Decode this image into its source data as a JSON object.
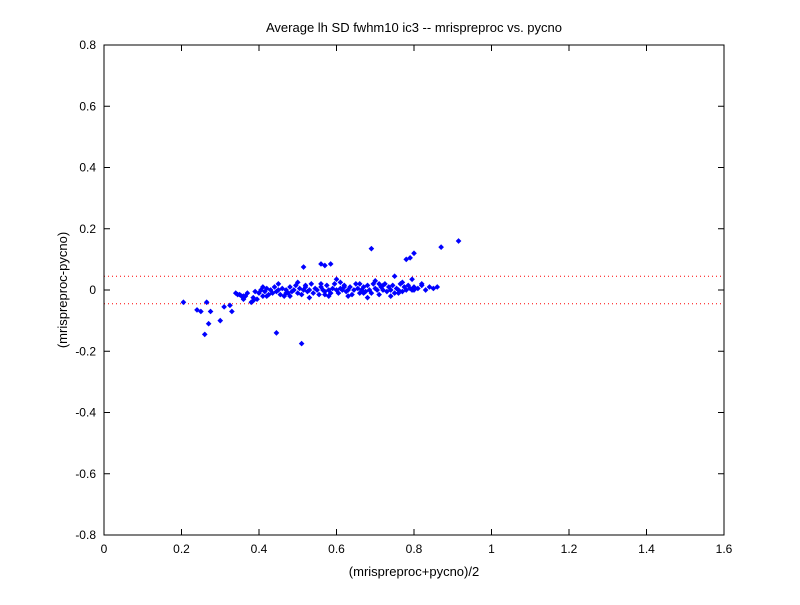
{
  "chart_data": {
    "type": "scatter",
    "title": "Average lh SD fwhm10 ic3 -- mrispreproc vs. pycno",
    "xlabel": "(mrispreproc+pycno)/2",
    "ylabel": "(mrispreproc-pycno)",
    "xlim": [
      0,
      1.6
    ],
    "ylim": [
      -0.8,
      0.8
    ],
    "xticks": [
      "0",
      "0.2",
      "0.4",
      "0.6",
      "0.8",
      "1",
      "1.2",
      "1.4",
      "1.6"
    ],
    "yticks": [
      "-0.8",
      "-0.6",
      "-0.4",
      "-0.2",
      "0",
      "0.2",
      "0.4",
      "0.6",
      "0.8"
    ],
    "grid": false,
    "marker_color": "#0000ff",
    "reference_lines": {
      "color": "#ff0000",
      "style": "dotted",
      "y_values": [
        0.045,
        -0.045
      ]
    },
    "series": [
      {
        "x": [
          0.205,
          0.24,
          0.25,
          0.26,
          0.265,
          0.27,
          0.275,
          0.3,
          0.31,
          0.325,
          0.33,
          0.34,
          0.345,
          0.355,
          0.36,
          0.365,
          0.37,
          0.38,
          0.385,
          0.39,
          0.395,
          0.4,
          0.405,
          0.41,
          0.415,
          0.42,
          0.425,
          0.43,
          0.435,
          0.44,
          0.445,
          0.45,
          0.455,
          0.46,
          0.465,
          0.47,
          0.475,
          0.48,
          0.485,
          0.49,
          0.495,
          0.5,
          0.505,
          0.51,
          0.515,
          0.52,
          0.525,
          0.53,
          0.535,
          0.54,
          0.545,
          0.55,
          0.555,
          0.56,
          0.565,
          0.57,
          0.575,
          0.58,
          0.585,
          0.59,
          0.595,
          0.6,
          0.605,
          0.61,
          0.615,
          0.62,
          0.625,
          0.63,
          0.635,
          0.64,
          0.645,
          0.65,
          0.655,
          0.66,
          0.665,
          0.67,
          0.675,
          0.68,
          0.685,
          0.69,
          0.695,
          0.7,
          0.705,
          0.71,
          0.715,
          0.72,
          0.725,
          0.73,
          0.735,
          0.74,
          0.745,
          0.75,
          0.755,
          0.76,
          0.765,
          0.77,
          0.775,
          0.78,
          0.785,
          0.79,
          0.795,
          0.8,
          0.81,
          0.82,
          0.83,
          0.84,
          0.85,
          0.86,
          0.42,
          0.45,
          0.48,
          0.5,
          0.53,
          0.56,
          0.58,
          0.61,
          0.63,
          0.66,
          0.68,
          0.71,
          0.74,
          0.77,
          0.8,
          0.41,
          0.47,
          0.52,
          0.57,
          0.62,
          0.67,
          0.72,
          0.76,
          0.82,
          0.445,
          0.515,
          0.51,
          0.56,
          0.57,
          0.585,
          0.6,
          0.69,
          0.75,
          0.78,
          0.79,
          0.8,
          0.795,
          0.87,
          0.915,
          0.7,
          0.385,
          0.36,
          0.35
        ],
        "y": [
          -0.04,
          -0.065,
          -0.07,
          -0.145,
          -0.04,
          -0.11,
          -0.07,
          -0.1,
          -0.055,
          -0.05,
          -0.07,
          -0.01,
          -0.015,
          -0.02,
          -0.03,
          -0.02,
          -0.01,
          -0.04,
          -0.025,
          -0.005,
          -0.03,
          -0.01,
          0.0,
          -0.02,
          -0.005,
          0.005,
          -0.015,
          0.0,
          -0.01,
          0.01,
          -0.005,
          0.0,
          -0.015,
          0.005,
          -0.02,
          0.0,
          -0.01,
          0.01,
          -0.005,
          0.0,
          0.015,
          -0.01,
          0.005,
          -0.015,
          0.0,
          0.01,
          -0.005,
          0.0,
          0.02,
          -0.01,
          0.005,
          0.0,
          -0.015,
          0.01,
          0.0,
          -0.005,
          0.015,
          0.0,
          -0.01,
          0.005,
          0.02,
          0.0,
          -0.01,
          0.005,
          0.0,
          0.015,
          -0.005,
          0.0,
          0.01,
          -0.015,
          0.0,
          0.02,
          0.005,
          -0.01,
          0.0,
          0.01,
          -0.005,
          0.015,
          0.0,
          -0.01,
          0.02,
          0.005,
          0.0,
          -0.015,
          0.01,
          0.0,
          0.02,
          -0.005,
          0.01,
          0.0,
          0.015,
          -0.01,
          0.005,
          0.0,
          0.02,
          -0.005,
          0.01,
          0.0,
          0.015,
          0.005,
          0.0,
          0.01,
          0.005,
          0.015,
          0.0,
          0.01,
          0.005,
          0.01,
          -0.02,
          0.02,
          -0.02,
          0.025,
          -0.025,
          0.02,
          -0.02,
          0.025,
          -0.02,
          0.02,
          -0.025,
          0.02,
          -0.02,
          0.025,
          0.0,
          0.01,
          -0.01,
          0.015,
          -0.015,
          0.01,
          -0.01,
          0.015,
          -0.01,
          0.02,
          -0.14,
          0.075,
          -0.175,
          0.085,
          0.08,
          0.085,
          0.035,
          0.135,
          0.045,
          0.1,
          0.105,
          0.12,
          0.035,
          0.14,
          0.16,
          0.03,
          -0.035,
          -0.02,
          -0.015
        ]
      }
    ]
  }
}
